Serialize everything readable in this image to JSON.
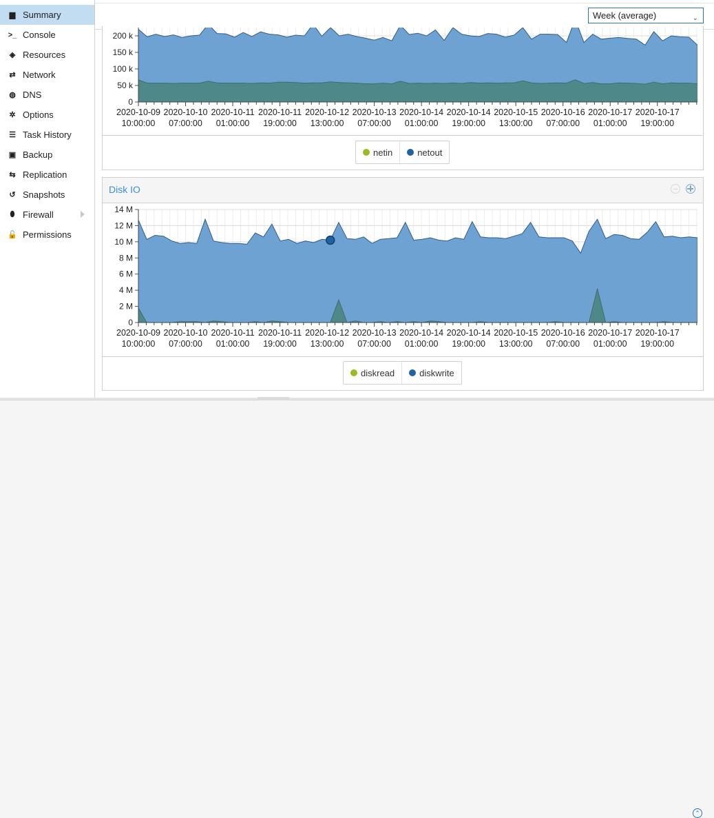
{
  "sidebar": {
    "items": [
      {
        "label": "Summary",
        "icon": "book-icon",
        "glyph": "▆",
        "active": true
      },
      {
        "label": "Console",
        "icon": "terminal-icon",
        "glyph": ">_"
      },
      {
        "label": "Resources",
        "icon": "cube-icon",
        "glyph": "◈"
      },
      {
        "label": "Network",
        "icon": "exchange-icon",
        "glyph": "⇄"
      },
      {
        "label": "DNS",
        "icon": "globe-icon",
        "glyph": "◍"
      },
      {
        "label": "Options",
        "icon": "gear-icon",
        "glyph": "✲"
      },
      {
        "label": "Task History",
        "icon": "list-icon",
        "glyph": "☰"
      },
      {
        "label": "Backup",
        "icon": "floppy-icon",
        "glyph": "▣"
      },
      {
        "label": "Replication",
        "icon": "retweet-icon",
        "glyph": "⇆"
      },
      {
        "label": "Snapshots",
        "icon": "history-icon",
        "glyph": "↺"
      },
      {
        "label": "Firewall",
        "icon": "shield-icon",
        "glyph": "⬮",
        "submenu": true
      },
      {
        "label": "Permissions",
        "icon": "unlock-icon",
        "glyph": "🔓"
      }
    ]
  },
  "toolbar": {
    "timeframe_label": "Week (average)"
  },
  "colors": {
    "netin": "#98bd1e",
    "netout": "#1f63a3",
    "area_top": "#6ba0d1",
    "area_bottom": "#4c8582",
    "border": "#2f5d8a",
    "grid": "#e4e4e4"
  },
  "network_panel": {
    "legend": [
      {
        "name": "netin",
        "color": "#98bd1e"
      },
      {
        "name": "netout",
        "color": "#1f63a3"
      }
    ]
  },
  "disk_panel": {
    "title": "Disk IO",
    "legend": [
      {
        "name": "diskread",
        "color": "#98bd1e"
      },
      {
        "name": "diskwrite",
        "color": "#1f63a3"
      }
    ]
  },
  "chart_data": [
    {
      "type": "area",
      "ylim": [
        0,
        225000
      ],
      "y_ticks": [
        "0",
        "50 k",
        "100 k",
        "150 k",
        "200 k"
      ],
      "x_ticks": [
        [
          "2020-10-09",
          "10:00:00"
        ],
        [
          "2020-10-10",
          "07:00:00"
        ],
        [
          "2020-10-11",
          "01:00:00"
        ],
        [
          "2020-10-11",
          "19:00:00"
        ],
        [
          "2020-10-12",
          "13:00:00"
        ],
        [
          "2020-10-13",
          "07:00:00"
        ],
        [
          "2020-10-14",
          "01:00:00"
        ],
        [
          "2020-10-14",
          "19:00:00"
        ],
        [
          "2020-10-15",
          "13:00:00"
        ],
        [
          "2020-10-16",
          "07:00:00"
        ],
        [
          "2020-10-17",
          "01:00:00"
        ],
        [
          "2020-10-17",
          "19:00:00"
        ]
      ],
      "series": [
        {
          "name": "netout",
          "values": [
            220000,
            197000,
            205000,
            198000,
            203000,
            195000,
            200000,
            202000,
            235000,
            207000,
            206000,
            196000,
            210000,
            198000,
            212000,
            205000,
            203000,
            196000,
            202000,
            200000,
            235000,
            199000,
            225000,
            200000,
            205000,
            198000,
            193000,
            187000,
            195000,
            185000,
            232000,
            204000,
            208000,
            200000,
            218000,
            186000,
            225000,
            205000,
            200000,
            198000,
            207000,
            205000,
            196000,
            202000,
            225000,
            190000,
            205000,
            205000,
            204000,
            180000,
            250000,
            180000,
            205000,
            190000,
            193000,
            195000,
            192000,
            190000,
            172000,
            213000,
            185000,
            200000,
            197000,
            196000,
            172000
          ]
        },
        {
          "name": "netin",
          "values": [
            67000,
            57000,
            57000,
            57000,
            56000,
            57000,
            57000,
            57000,
            63000,
            58000,
            57000,
            57000,
            57000,
            56000,
            58000,
            57000,
            60000,
            60000,
            59000,
            57000,
            58000,
            58000,
            61000,
            59000,
            58000,
            57000,
            55000,
            55000,
            57000,
            55000,
            63000,
            56000,
            57000,
            56000,
            57000,
            56000,
            58000,
            56000,
            59000,
            57000,
            58000,
            57000,
            58000,
            58000,
            64000,
            58000,
            56000,
            57000,
            58000,
            57000,
            67000,
            56000,
            59000,
            55000,
            55000,
            58000,
            57000,
            56000,
            54000,
            60000,
            55000,
            58000,
            57000,
            57000,
            55000
          ]
        }
      ]
    },
    {
      "type": "area",
      "ylim": [
        0,
        14000000
      ],
      "y_ticks": [
        "0",
        "2 M",
        "4 M",
        "6 M",
        "8 M",
        "10 M",
        "12 M",
        "14 M"
      ],
      "x_ticks": [
        [
          "2020-10-09",
          "10:00:00"
        ],
        [
          "2020-10-10",
          "07:00:00"
        ],
        [
          "2020-10-11",
          "01:00:00"
        ],
        [
          "2020-10-11",
          "19:00:00"
        ],
        [
          "2020-10-12",
          "13:00:00"
        ],
        [
          "2020-10-13",
          "07:00:00"
        ],
        [
          "2020-10-14",
          "01:00:00"
        ],
        [
          "2020-10-14",
          "19:00:00"
        ],
        [
          "2020-10-15",
          "13:00:00"
        ],
        [
          "2020-10-16",
          "07:00:00"
        ],
        [
          "2020-10-17",
          "01:00:00"
        ],
        [
          "2020-10-17",
          "19:00:00"
        ]
      ],
      "series": [
        {
          "name": "diskwrite",
          "values": [
            12700000,
            10300000,
            10800000,
            10700000,
            10100000,
            9800000,
            9900000,
            9800000,
            12800000,
            10100000,
            9900000,
            9800000,
            9800000,
            9700000,
            11100000,
            10600000,
            12200000,
            10100000,
            10300000,
            9800000,
            10100000,
            9900000,
            10300000,
            10200000,
            12400000,
            10400000,
            10300000,
            10600000,
            9800000,
            10300000,
            10400000,
            10500000,
            12400000,
            10200000,
            10300000,
            10500000,
            10200000,
            10100000,
            10500000,
            10300000,
            12500000,
            10600000,
            10500000,
            10500000,
            10400000,
            10700000,
            11000000,
            12400000,
            10600000,
            10500000,
            10500000,
            10500000,
            10100000,
            8600000,
            11300000,
            12800000,
            10400000,
            10900000,
            10800000,
            10400000,
            10300000,
            11200000,
            12500000,
            10600000,
            10700000,
            10500000,
            10600000,
            10500000
          ]
        },
        {
          "name": "diskread",
          "values": [
            1800000,
            0,
            0,
            0,
            0,
            100000,
            100000,
            100000,
            0,
            200000,
            100000,
            0,
            0,
            0,
            100000,
            0,
            200000,
            100000,
            0,
            0,
            0,
            0,
            0,
            0,
            2800000,
            0,
            200000,
            0,
            0,
            100000,
            0,
            100000,
            0,
            100000,
            0,
            200000,
            100000,
            0,
            0,
            0,
            0,
            100000,
            0,
            0,
            0,
            0,
            0,
            0,
            0,
            0,
            100000,
            0,
            0,
            0,
            0,
            4200000,
            0,
            100000,
            0,
            0,
            0,
            0,
            0,
            100000,
            0,
            0,
            0,
            0
          ]
        }
      ],
      "highlight": {
        "series": "diskwrite",
        "index": 23
      }
    }
  ]
}
